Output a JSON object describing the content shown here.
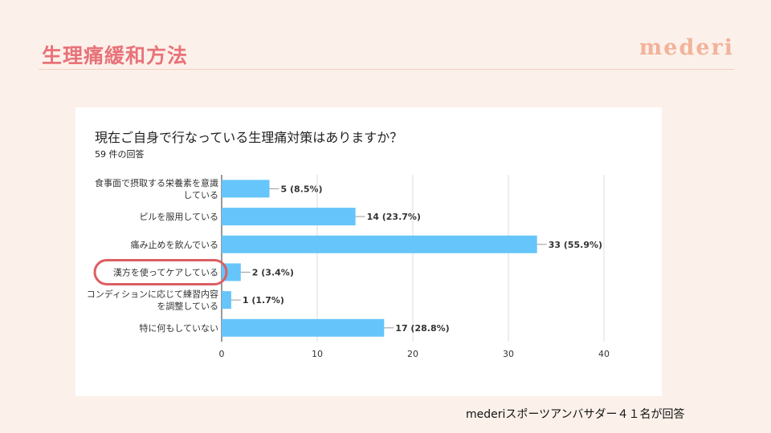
{
  "header": {
    "title": "生理痛緩和方法",
    "brand": "mederi"
  },
  "survey": {
    "question": "現在ご自身で行なっている生理痛対策はありますか？",
    "responses": "59 件の回答"
  },
  "footnote": "mederiスポーツアンバサダー４１名が回答",
  "colors": {
    "bar": "#66c5fa",
    "highlight": "#dc5f63",
    "title": "#e8727a",
    "brand": "#f2b39b"
  },
  "chart_data": {
    "type": "bar",
    "orientation": "horizontal",
    "title": "現在ご自身で行なっている生理痛対策はありますか？",
    "categories": [
      "食事面で摂取する栄養素を意識している",
      "ピルを服用している",
      "痛み止めを飲んでいる",
      "漢方を使ってケアしている",
      "コンディションに応じて練習内容を調整している",
      "特に何もしていない"
    ],
    "category_lines": [
      [
        "食事面で摂取する栄養素を意識",
        "している"
      ],
      [
        "ピルを服用している"
      ],
      [
        "痛み止めを飲んでいる"
      ],
      [
        "漢方を使ってケアしている"
      ],
      [
        "コンディションに応じて練習内容",
        "を調整している"
      ],
      [
        "特に何もしていない"
      ]
    ],
    "values": [
      5,
      14,
      33,
      2,
      1,
      17
    ],
    "data_labels": [
      "5 (8.5%)",
      "14 (23.7%)",
      "33 (55.9%)",
      "2 (3.4%)",
      "1 (1.7%)",
      "17 (28.8%)"
    ],
    "xlim": [
      0,
      40
    ],
    "xticks": [
      "0",
      "10",
      "20",
      "30",
      "40"
    ],
    "grid": true,
    "highlighted_category": "漢方を使ってケアしている"
  }
}
